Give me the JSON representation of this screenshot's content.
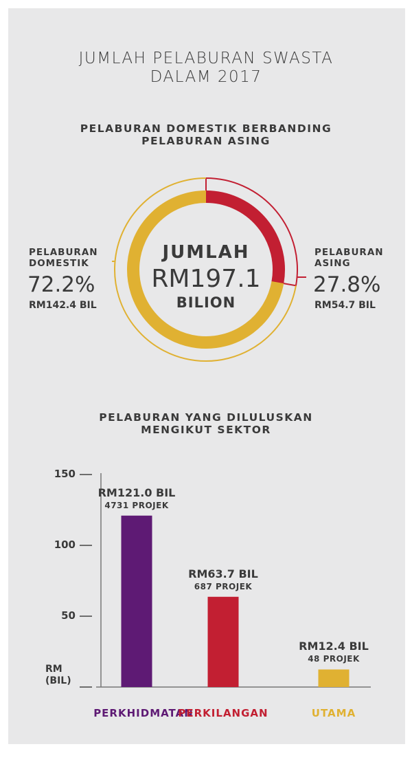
{
  "title": "JUMLAH PELABURAN SWASTA DALAM 2017",
  "chart_data": [
    {
      "type": "donut",
      "title": "PELABURAN DOMESTIK BERBANDING PELABURAN ASING",
      "center_text": [
        "JUMLAH",
        "RM197.1",
        "BILION"
      ],
      "categories": [
        "PELABURAN DOMESTIK",
        "PELABURAN ASING"
      ],
      "values": [
        72.2,
        27.8
      ],
      "value_labels": [
        "72.2%",
        "27.8%"
      ],
      "amount_labels": [
        "RM142.4 BIL",
        "RM54.7 BIL"
      ],
      "colors": [
        "#e0b132",
        "#c21f32"
      ]
    },
    {
      "type": "bar",
      "title": "PELABURAN YANG DILULUSKAN MENGIKUT SEKTOR",
      "categories": [
        "PERKHIDMATAN",
        "PERKILANGAN",
        "UTAMA"
      ],
      "values": [
        121.0,
        63.7,
        12.4
      ],
      "value_labels": [
        "RM121.0 BIL",
        "RM63.7 BIL",
        "RM12.4 BIL"
      ],
      "sub_labels": [
        "4731 PROJEK",
        "687 PROJEK",
        "48 PROJEK"
      ],
      "colors": [
        "#5e1a74",
        "#c21f32",
        "#e0b132"
      ],
      "y_label": "RM (BIL)",
      "ylim": [
        0,
        150
      ],
      "yticks": [
        50,
        100,
        150
      ]
    }
  ]
}
